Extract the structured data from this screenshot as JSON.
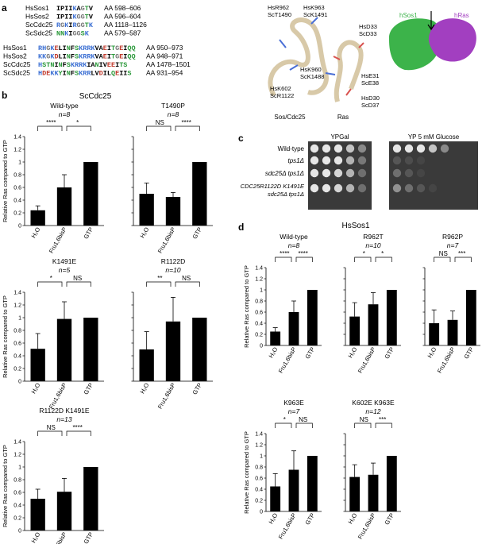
{
  "panel_labels": [
    "a",
    "b",
    "c",
    "d"
  ],
  "alignment": {
    "block1": [
      {
        "name": "HsSos1",
        "seq": "IPIIKAGTV",
        "range": "AA 598–606"
      },
      {
        "name": "HsSos2",
        "seq": "IPIIKGGTV",
        "range": "AA 596–604"
      },
      {
        "name": "ScCdc25",
        "seq": "RGKIRGGTK",
        "range": "AA 1118–1126"
      },
      {
        "name": "ScSdc25",
        "seq": "NNKIGGSK",
        "range": "AA 579–587"
      }
    ],
    "block2": [
      {
        "name": "HsSos1",
        "seq": "RHGKELINFSKRRKVAEITGEIQQ",
        "range": "AA 950–973"
      },
      {
        "name": "HsSos2",
        "seq": "KKGKDLINFSKRRKVAEITGEIQQ",
        "range": "AA 948–971"
      },
      {
        "name": "ScCdc25",
        "seq": "HSTNINFSKRRKIANIVEEITS",
        "range": "AA 1478–1501"
      },
      {
        "name": "ScSdc25",
        "seq": "HDEKKYINFSKRRLVDILQEIIS",
        "range": "AA 931–954"
      }
    ]
  },
  "structure": {
    "labels": [
      "HsR962\nScT1490",
      "HsK963\nScK1491",
      "HsD33\nScD33",
      "HsK960\nScK1488",
      "HsK602\nScR1122",
      "HsE31\nScE38",
      "HsD30\nScD37"
    ],
    "footer_left": "Sos/Cdc25",
    "footer_right": "Ras",
    "surface_labels": [
      "hSos1",
      "hRas"
    ],
    "colors": {
      "sos": "#3cb34a",
      "ras": "#a23fc0",
      "ribbon": "#d8c9a8"
    }
  },
  "spot_assay": {
    "headers": [
      "YPGal",
      "YP 5 mM Glucose"
    ],
    "rows": [
      {
        "label": "Wild-type",
        "growth_left": [
          1,
          1,
          1,
          0.8,
          0.45
        ],
        "growth_right": [
          1,
          1,
          1,
          0.8,
          0.45
        ]
      },
      {
        "label": "tps1Δ",
        "growth_left": [
          1,
          1,
          1,
          0.7,
          0.35
        ],
        "growth_right": [
          0.15,
          0.1,
          0.05,
          0,
          0
        ]
      },
      {
        "label": "sdc25Δ tps1Δ",
        "growth_left": [
          1,
          1,
          0.9,
          0.7,
          0.3
        ],
        "growth_right": [
          0.3,
          0.15,
          0.05,
          0,
          0
        ]
      },
      {
        "label": "CDC25R1122D K1491E\nsdc25Δ tps1Δ",
        "growth_left": [
          1,
          1,
          0.9,
          0.7,
          0.3
        ],
        "growth_right": [
          0.5,
          0.3,
          0.15,
          0.05,
          0
        ]
      }
    ]
  },
  "groups": [
    {
      "panel": "b",
      "title": "ScCdc25"
    },
    {
      "panel": "d",
      "title": "HsSos1"
    }
  ],
  "chart_data": [
    {
      "type": "bar",
      "title": "Wild-type",
      "n": "n=8",
      "categories": [
        "H₂O",
        "Fru1,6bisP",
        "GTP"
      ],
      "values": [
        0.24,
        0.6,
        1.0
      ],
      "errors": [
        0.07,
        0.2,
        0
      ],
      "ylabel": "Relative Ras compared to GTP",
      "ylim": [
        0,
        1.4
      ],
      "yticks": [
        0,
        0.2,
        0.4,
        0.6,
        0.8,
        1.0,
        1.2,
        1.4
      ],
      "sig": [
        "****",
        "*"
      ]
    },
    {
      "type": "bar",
      "title": "T1490P",
      "n": "n=8",
      "categories": [
        "H₂O",
        "Fru1,6bisP",
        "GTP"
      ],
      "values": [
        0.5,
        0.45,
        1.0
      ],
      "errors": [
        0.17,
        0.07,
        0
      ],
      "ylim": [
        0,
        1.4
      ],
      "sig": [
        "NS",
        "****"
      ]
    },
    {
      "type": "bar",
      "title": "K1491E",
      "n": "n=5",
      "categories": [
        "H₂O",
        "Fru1,6bisP",
        "GTP"
      ],
      "values": [
        0.51,
        0.98,
        1.0
      ],
      "errors": [
        0.24,
        0.27,
        0
      ],
      "ylabel": "Relative Ras compared to GTP",
      "ylim": [
        0,
        1.4
      ],
      "yticks": [
        0,
        0.2,
        0.4,
        0.6,
        0.8,
        1.0,
        1.2,
        1.4
      ],
      "sig": [
        "*",
        "NS"
      ]
    },
    {
      "type": "bar",
      "title": "R1122D",
      "n": "n=10",
      "categories": [
        "H₂O",
        "Fru1,6bisP",
        "GTP"
      ],
      "values": [
        0.5,
        0.94,
        1.0
      ],
      "errors": [
        0.28,
        0.38,
        0
      ],
      "ylim": [
        0,
        1.4
      ],
      "sig": [
        "**",
        "NS"
      ]
    },
    {
      "type": "bar",
      "title": "R1122D K1491E",
      "n": "n=13",
      "categories": [
        "H₂O",
        "Fru1,6bisP",
        "GTP"
      ],
      "values": [
        0.5,
        0.61,
        1.0
      ],
      "errors": [
        0.15,
        0.21,
        0
      ],
      "ylabel": "Relative Ras compared to GTP",
      "ylim": [
        0,
        1.4
      ],
      "yticks": [
        0,
        0.2,
        0.4,
        0.6,
        0.8,
        1.0,
        1.2,
        1.4
      ],
      "sig": [
        "NS",
        "****"
      ]
    },
    {
      "type": "bar",
      "title": "Wild-type",
      "n": "n=8",
      "categories": [
        "H₂O",
        "Fru1,6bisP",
        "GTP"
      ],
      "values": [
        0.25,
        0.6,
        1.0
      ],
      "errors": [
        0.07,
        0.2,
        0
      ],
      "ylabel": "Relative Ras compared to GTP",
      "ylim": [
        0,
        1.4
      ],
      "yticks": [
        0,
        0.2,
        0.4,
        0.6,
        0.8,
        1.0,
        1.2,
        1.4
      ],
      "sig": [
        "****",
        "****"
      ]
    },
    {
      "type": "bar",
      "title": "R962T",
      "n": "n=10",
      "categories": [
        "H₂O",
        "Fru1,6bisP",
        "GTP"
      ],
      "values": [
        0.52,
        0.74,
        1.0
      ],
      "errors": [
        0.25,
        0.21,
        0
      ],
      "ylim": [
        0,
        1.4
      ],
      "sig": [
        "*",
        "*"
      ]
    },
    {
      "type": "bar",
      "title": "R962P",
      "n": "n=7",
      "categories": [
        "H₂O",
        "Fru1,6bisP",
        "GTP"
      ],
      "values": [
        0.4,
        0.46,
        1.0
      ],
      "errors": [
        0.24,
        0.16,
        0
      ],
      "ylim": [
        0,
        1.4
      ],
      "sig": [
        "NS",
        "***"
      ]
    },
    {
      "type": "bar",
      "title": "K963E",
      "n": "n=7",
      "categories": [
        "H₂O",
        "Fru1,6bisP",
        "GTP"
      ],
      "values": [
        0.45,
        0.75,
        1.0
      ],
      "errors": [
        0.23,
        0.34,
        0
      ],
      "ylabel": "Relative Ras compared to GTP",
      "ylim": [
        0,
        1.4
      ],
      "yticks": [
        0,
        0.2,
        0.4,
        0.6,
        0.8,
        1.0,
        1.2,
        1.4
      ],
      "sig": [
        "*",
        "NS"
      ]
    },
    {
      "type": "bar",
      "title": "K602E K963E",
      "n": "n=12",
      "categories": [
        "H₂O",
        "Fru1,6bisP",
        "GTP"
      ],
      "values": [
        0.62,
        0.66,
        1.0
      ],
      "errors": [
        0.22,
        0.21,
        0
      ],
      "ylim": [
        0,
        1.4
      ],
      "sig": [
        "NS",
        "***"
      ]
    }
  ]
}
